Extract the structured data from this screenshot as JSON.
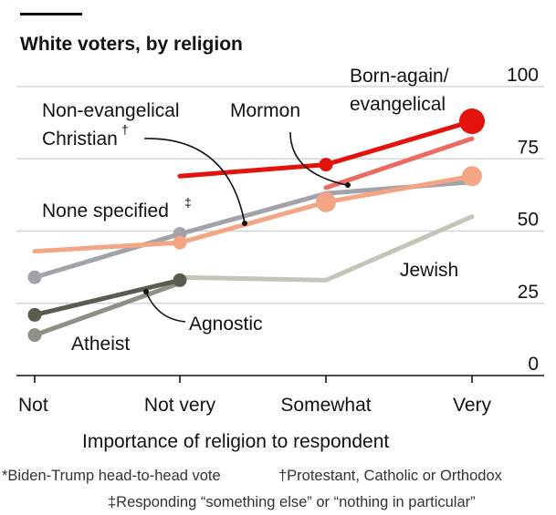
{
  "chart_data": {
    "type": "line",
    "title": "White voters, by religion",
    "xlabel": "Importance of religion to respondent",
    "categories": [
      "Not",
      "Not very",
      "Somewhat",
      "Very"
    ],
    "ylim": [
      0,
      100
    ],
    "yticks": [
      "100",
      "75",
      "50",
      "25",
      "0"
    ],
    "grid": true,
    "series": [
      {
        "name": "Jewish",
        "color": "#c4c4b8",
        "values": [
          null,
          34,
          33,
          55
        ]
      },
      {
        "name": "Atheist",
        "color": "#8f8f84",
        "values": [
          14,
          32,
          null,
          null
        ]
      },
      {
        "name": "Agnostic",
        "color": "#5b5b52",
        "values": [
          21,
          33,
          null,
          null
        ]
      },
      {
        "name": "None specified‡",
        "color": "#a2a2aa",
        "values": [
          34,
          49,
          63,
          67
        ]
      },
      {
        "name": "Non-evangelical Christian†",
        "color": "#f3a584",
        "values": [
          43,
          46,
          60,
          69
        ]
      },
      {
        "name": "Mormon",
        "color": "#ec6a61",
        "values": [
          null,
          null,
          65,
          82
        ]
      },
      {
        "name": "Born-again/ evangelical",
        "color": "#e3120b",
        "values": [
          null,
          69,
          73,
          88
        ]
      }
    ],
    "labels": {
      "born_again_1": "Born-again/",
      "born_again_2": "evangelical",
      "mormon": "Mormon",
      "nonevang_1": "Non-evangelical",
      "nonevang_2": "Christian",
      "dagger": "†",
      "none_specified": "None specified",
      "ddagger": "‡",
      "jewish": "Jewish",
      "agnostic": "Agnostic",
      "atheist": "Atheist"
    },
    "footnotes": {
      "note1": "*Biden-Trump head-to-head vote",
      "note2": "†Protestant, Catholic or Orthodox",
      "note3": "‡Responding “something else” or “nothing in particular”"
    }
  }
}
